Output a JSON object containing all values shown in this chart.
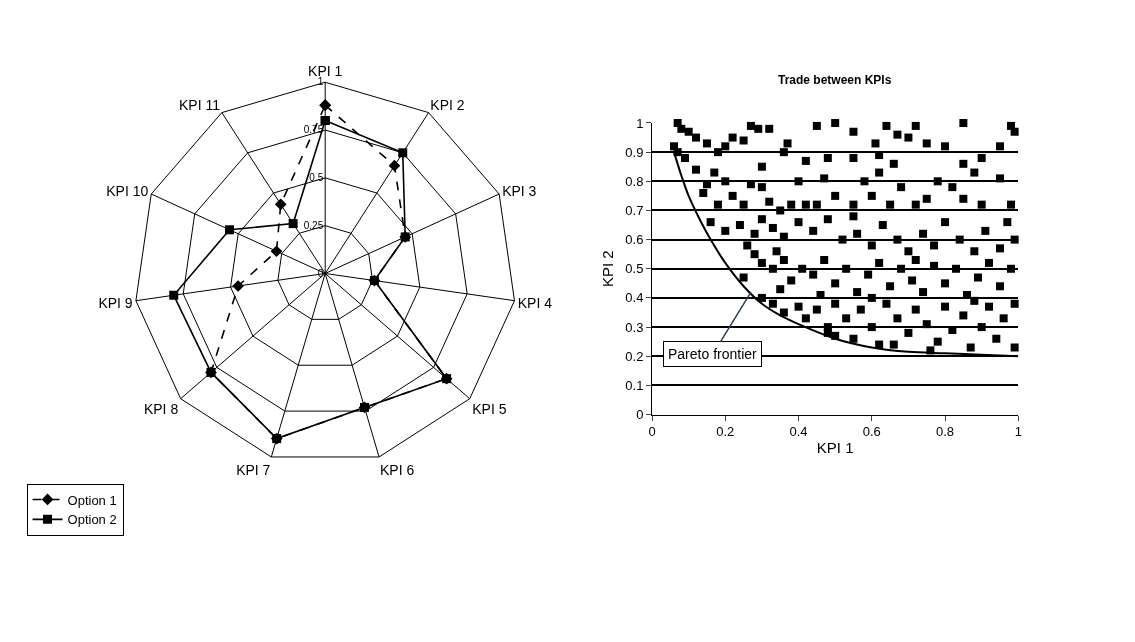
{
  "chart_data": [
    {
      "type": "radar",
      "categories": [
        "KPI 1",
        "KPI 2",
        "KPI 3",
        "KPI 4",
        "KPI 5",
        "KPI 6",
        "KPI 7",
        "KPI 8",
        "KPI 9",
        "KPI 10",
        "KPI 11"
      ],
      "ylim": [
        0,
        1
      ],
      "yticks": [
        0,
        0.25,
        0.5,
        0.75,
        1
      ],
      "legend": "bottom left",
      "grid": true,
      "series": [
        {
          "name": "Option 1",
          "color": "#000000",
          "marker": "diamond",
          "line_style": "dashed",
          "values": [
            0.88,
            0.67,
            0.46,
            0.26,
            0.84,
            0.73,
            0.9,
            0.79,
            0.46,
            0.28,
            0.43
          ]
        },
        {
          "name": "Option 2",
          "color": "#000000",
          "marker": "square",
          "line_style": "solid",
          "values": [
            0.8,
            0.75,
            0.46,
            0.26,
            0.84,
            0.73,
            0.9,
            0.79,
            0.8,
            0.55,
            0.31
          ]
        }
      ]
    },
    {
      "type": "scatter",
      "title": "Trade between KPIs",
      "xlabel": "KPI 1",
      "ylabel": "KPI 2",
      "xlim": [
        0,
        1
      ],
      "xticks": [
        0,
        0.2,
        0.4,
        0.6,
        0.8,
        1
      ],
      "ylim": [
        0,
        1
      ],
      "yticks": [
        0,
        0.1,
        0.2,
        0.3,
        0.4,
        0.5,
        0.6,
        0.7,
        0.8,
        0.9,
        1
      ],
      "grid": "y",
      "legend": false,
      "annotations": [
        {
          "text": "Pareto frontier",
          "x": 0.27,
          "y": 0.42
        }
      ],
      "series": [
        {
          "type": "scatter",
          "marker": "square",
          "color": "#000000",
          "x": [
            0.07,
            0.08,
            0.1,
            0.12,
            0.06,
            0.07,
            0.09,
            0.15,
            0.2,
            0.22,
            0.18,
            0.25,
            0.27,
            0.29,
            0.32,
            0.36,
            0.37,
            0.45,
            0.5,
            0.55,
            0.64,
            0.72,
            0.85,
            0.98,
            0.99,
            0.61,
            0.67,
            0.7,
            0.75,
            0.8,
            0.9,
            0.95,
            0.62,
            0.66,
            0.48,
            0.55,
            0.42,
            0.3,
            0.85,
            0.12,
            0.15,
            0.17,
            0.2,
            0.14,
            0.22,
            0.27,
            0.3,
            0.32,
            0.35,
            0.38,
            0.42,
            0.45,
            0.5,
            0.55,
            0.58,
            0.6,
            0.65,
            0.68,
            0.72,
            0.75,
            0.78,
            0.82,
            0.85,
            0.9,
            0.95,
            0.98,
            0.25,
            0.18,
            0.4,
            0.62,
            0.88,
            0.47,
            0.16,
            0.2,
            0.24,
            0.28,
            0.3,
            0.33,
            0.36,
            0.4,
            0.44,
            0.48,
            0.52,
            0.56,
            0.6,
            0.63,
            0.67,
            0.7,
            0.74,
            0.77,
            0.8,
            0.84,
            0.88,
            0.91,
            0.95,
            0.99,
            0.26,
            0.34,
            0.55,
            0.97,
            0.25,
            0.28,
            0.3,
            0.33,
            0.36,
            0.38,
            0.41,
            0.44,
            0.47,
            0.5,
            0.53,
            0.56,
            0.59,
            0.62,
            0.65,
            0.68,
            0.71,
            0.74,
            0.77,
            0.8,
            0.83,
            0.86,
            0.89,
            0.92,
            0.95,
            0.98,
            0.35,
            0.46,
            0.6,
            0.72,
            0.3,
            0.33,
            0.36,
            0.48,
            0.4,
            0.42,
            0.45,
            0.48,
            0.5,
            0.53,
            0.55,
            0.57,
            0.6,
            0.62,
            0.64,
            0.67,
            0.7,
            0.72,
            0.75,
            0.78,
            0.8,
            0.82,
            0.85,
            0.87,
            0.9,
            0.92,
            0.94,
            0.96,
            0.99,
            0.99,
            0.5,
            0.66,
            0.76,
            0.88
          ],
          "values": [
            1,
            0.98,
            0.97,
            0.95,
            0.92,
            0.9,
            0.88,
            0.93,
            0.92,
            0.95,
            0.9,
            0.94,
            0.99,
            0.98,
            0.98,
            0.9,
            0.93,
            0.99,
            1,
            0.97,
            0.99,
            0.99,
            1,
            0.99,
            0.97,
            0.93,
            0.96,
            0.95,
            0.93,
            0.92,
            0.88,
            0.92,
            0.89,
            0.86,
            0.88,
            0.88,
            0.87,
            0.85,
            0.86,
            0.84,
            0.79,
            0.83,
            0.8,
            0.76,
            0.75,
            0.79,
            0.78,
            0.73,
            0.7,
            0.72,
            0.72,
            0.72,
            0.75,
            0.72,
            0.8,
            0.75,
            0.72,
            0.78,
            0.72,
            0.74,
            0.8,
            0.78,
            0.74,
            0.72,
            0.81,
            0.72,
            0.72,
            0.72,
            0.8,
            0.83,
            0.83,
            0.81,
            0.66,
            0.63,
            0.65,
            0.62,
            0.67,
            0.64,
            0.61,
            0.66,
            0.63,
            0.67,
            0.6,
            0.62,
            0.58,
            0.65,
            0.6,
            0.56,
            0.62,
            0.58,
            0.66,
            0.6,
            0.56,
            0.63,
            0.57,
            0.6,
            0.58,
            0.56,
            0.68,
            0.66,
            0.47,
            0.55,
            0.52,
            0.5,
            0.53,
            0.46,
            0.5,
            0.48,
            0.53,
            0.45,
            0.5,
            0.42,
            0.48,
            0.52,
            0.44,
            0.5,
            0.46,
            0.42,
            0.51,
            0.45,
            0.5,
            0.41,
            0.47,
            0.52,
            0.44,
            0.5,
            0.43,
            0.41,
            0.4,
            0.53,
            0.4,
            0.38,
            0.35,
            0.28,
            0.37,
            0.33,
            0.36,
            0.3,
            0.38,
            0.33,
            0.26,
            0.36,
            0.3,
            0.24,
            0.38,
            0.33,
            0.28,
            0.36,
            0.31,
            0.25,
            0.37,
            0.29,
            0.34,
            0.23,
            0.3,
            0.37,
            0.26,
            0.33,
            0.23,
            0.38,
            0.27,
            0.24,
            0.22,
            0.39
          ]
        },
        {
          "type": "line",
          "marker": "none",
          "line_style": "solid",
          "color": "#000000",
          "x": [
            0.06,
            0.08,
            0.1,
            0.13,
            0.16,
            0.2,
            0.25,
            0.3,
            0.35,
            0.4,
            0.5,
            0.6,
            0.7,
            0.8,
            0.9,
            1
          ],
          "values": [
            0.9,
            0.82,
            0.75,
            0.67,
            0.6,
            0.52,
            0.44,
            0.38,
            0.34,
            0.31,
            0.26,
            0.23,
            0.215,
            0.21,
            0.205,
            0.2
          ]
        }
      ]
    }
  ]
}
